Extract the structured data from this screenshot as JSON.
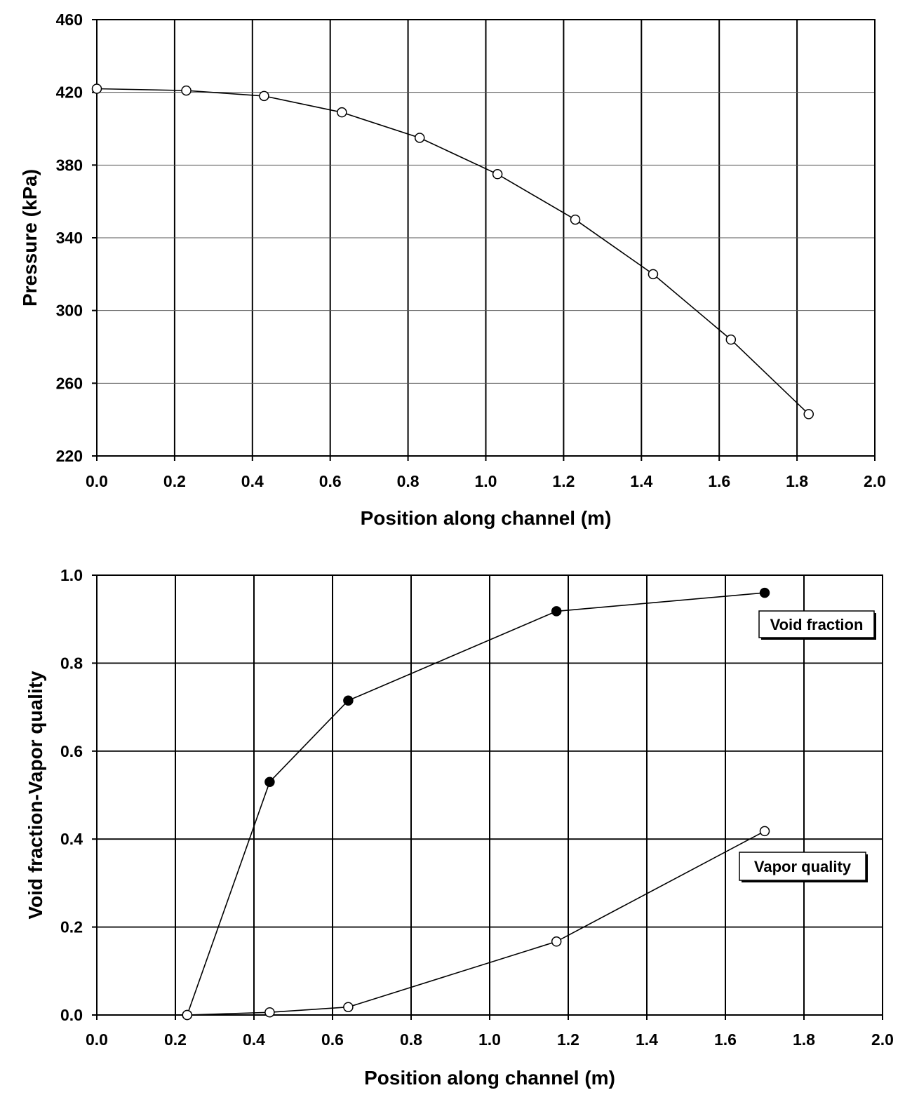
{
  "chart_data": [
    {
      "type": "line",
      "xlabel": "Position along channel (m)",
      "ylabel": "Pressure (kPa)",
      "xlim": [
        0.0,
        2.0
      ],
      "ylim": [
        220,
        460
      ],
      "x_ticks": [
        "0.0",
        "0.2",
        "0.4",
        "0.6",
        "0.8",
        "1.0",
        "1.2",
        "1.4",
        "1.6",
        "1.8",
        "2.0"
      ],
      "y_ticks": [
        "220",
        "260",
        "300",
        "340",
        "380",
        "420",
        "460"
      ],
      "grid": true,
      "series": [
        {
          "marker": "open-circle",
          "x": [
            0.0,
            0.23,
            0.43,
            0.63,
            0.83,
            1.03,
            1.23,
            1.43,
            1.63,
            1.83
          ],
          "y": [
            422,
            421,
            418,
            409,
            395,
            375,
            350,
            320,
            284,
            243
          ]
        }
      ]
    },
    {
      "type": "line",
      "xlabel": "Position along channel (m)",
      "ylabel": "Void fraction-Vapor quality",
      "xlim": [
        0.0,
        2.0
      ],
      "ylim": [
        0.0,
        1.0
      ],
      "x_ticks": [
        "0.0",
        "0.2",
        "0.4",
        "0.6",
        "0.8",
        "1.0",
        "1.2",
        "1.4",
        "1.6",
        "1.8",
        "2.0"
      ],
      "y_ticks": [
        "0.0",
        "0.2",
        "0.4",
        "0.6",
        "0.8",
        "1.0"
      ],
      "grid": true,
      "series": [
        {
          "name": "Void fraction",
          "marker": "filled-circle",
          "x": [
            0.23,
            0.44,
            0.64,
            1.17,
            1.7
          ],
          "y": [
            0.0,
            0.53,
            0.715,
            0.918,
            0.96
          ]
        },
        {
          "name": "Vapor quality",
          "marker": "open-circle",
          "x": [
            0.23,
            0.44,
            0.64,
            1.17,
            1.7
          ],
          "y": [
            0.0,
            0.006,
            0.018,
            0.167,
            0.418
          ]
        }
      ],
      "annotations": [
        {
          "text": "Void fraction",
          "series": 0
        },
        {
          "text": "Vapor quality",
          "series": 1
        }
      ]
    }
  ]
}
